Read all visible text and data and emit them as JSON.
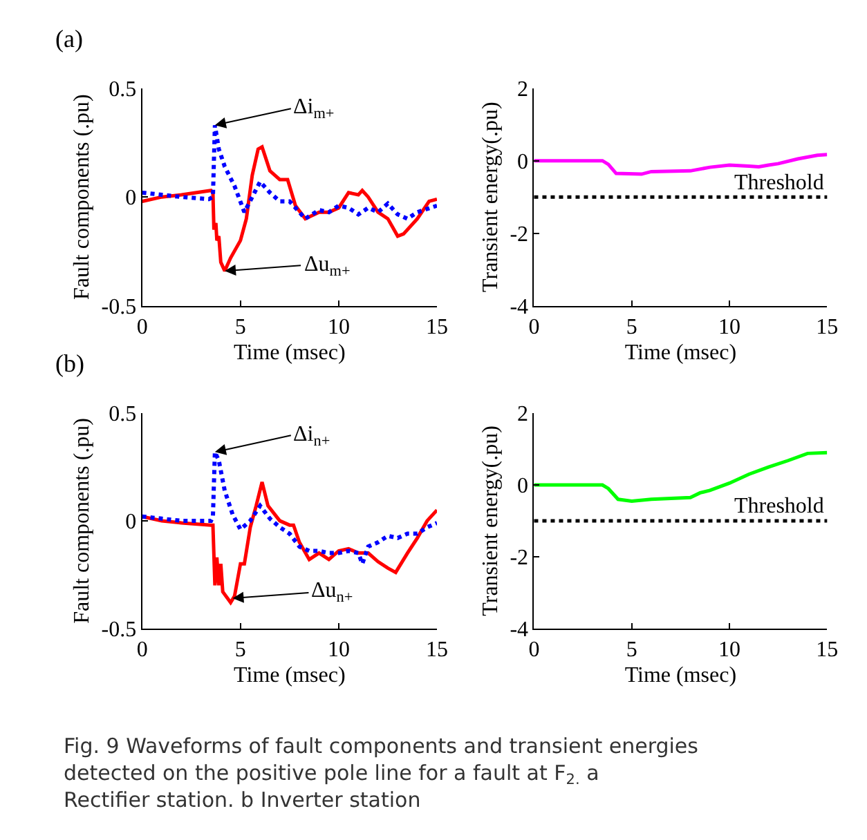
{
  "chart_data": [
    {
      "type": "line",
      "xlabel": "Time (msec)",
      "ylabel": "Fault components (.pu)",
      "xlim": [
        0,
        15
      ],
      "xticks": [
        0,
        5,
        10,
        15
      ],
      "ylim": [
        -0.5,
        0.5
      ],
      "yticks": [
        -0.5,
        0,
        0.5
      ],
      "annotations": [
        "(a)",
        {
          "text": "Δi$_{m+}$",
          "x": 3.7,
          "y": 0.33
        },
        {
          "text": "Δu$_{m+}$",
          "x": 4.2,
          "y": -0.34
        }
      ],
      "series": [
        {
          "color": "#ff0000",
          "line_style": "solid",
          "x": [
            0,
            1,
            2,
            3.5,
            3.6,
            3.65,
            3.75,
            3.8,
            3.9,
            4.0,
            4.2,
            4.5,
            5,
            5.3,
            5.6,
            5.9,
            6.1,
            6.5,
            7,
            7.4,
            7.8,
            8.3,
            9,
            9.5,
            10,
            10.5,
            11,
            11.2,
            11.5,
            12,
            12.5,
            13,
            13.3,
            14,
            14.6,
            15
          ],
          "values": [
            -0.02,
            0,
            0.01,
            0.03,
            0.02,
            -0.15,
            -0.12,
            -0.2,
            -0.18,
            -0.3,
            -0.34,
            -0.28,
            -0.2,
            -0.1,
            0.1,
            0.22,
            0.23,
            0.12,
            0.08,
            0.08,
            -0.04,
            -0.1,
            -0.07,
            -0.07,
            -0.05,
            0.02,
            0.01,
            0.03,
            0,
            -0.07,
            -0.1,
            -0.18,
            -0.17,
            -0.1,
            -0.02,
            -0.01
          ]
        },
        {
          "color": "#0000ff",
          "line_style": "dotted",
          "x": [
            0,
            1,
            2,
            3.4,
            3.6,
            3.7,
            3.9,
            4.2,
            4.7,
            5.2,
            5.6,
            6,
            6.5,
            7,
            7.5,
            8,
            8.3,
            9,
            9.5,
            10,
            10.5,
            11,
            11.5,
            12,
            12.5,
            13,
            13.5,
            14,
            15
          ],
          "values": [
            0.02,
            0.01,
            0,
            -0.01,
            0,
            0.33,
            0.22,
            0.14,
            0.05,
            -0.07,
            0,
            0.07,
            0.02,
            -0.02,
            -0.02,
            -0.07,
            -0.1,
            -0.06,
            -0.07,
            -0.04,
            -0.05,
            -0.08,
            -0.05,
            -0.07,
            -0.03,
            -0.08,
            -0.1,
            -0.07,
            -0.04
          ]
        }
      ]
    },
    {
      "type": "line",
      "xlabel": "Time (msec)",
      "ylabel": "Transient energy(.pu)",
      "xlim": [
        0,
        15
      ],
      "xticks": [
        0,
        5,
        10,
        15
      ],
      "ylim": [
        -4,
        2
      ],
      "yticks": [
        -4,
        -2,
        0,
        2
      ],
      "ref_lines": [
        {
          "axis": "y",
          "value": -1,
          "label": "Threshold",
          "color": "#000000",
          "line_style": "dotted"
        }
      ],
      "series": [
        {
          "color": "#ff00ff",
          "line_style": "solid",
          "x": [
            0,
            3.5,
            3.8,
            4.2,
            5.5,
            6,
            8,
            9,
            10,
            11,
            11.5,
            12,
            12.5,
            13.5,
            14.5,
            15
          ],
          "values": [
            0,
            0,
            -0.1,
            -0.35,
            -0.37,
            -0.3,
            -0.28,
            -0.18,
            -0.12,
            -0.15,
            -0.17,
            -0.12,
            -0.08,
            0.05,
            0.15,
            0.17
          ]
        }
      ]
    },
    {
      "type": "line",
      "xlabel": "Time (msec)",
      "ylabel": "Fault components (.pu)",
      "xlim": [
        0,
        15
      ],
      "xticks": [
        0,
        5,
        10,
        15
      ],
      "ylim": [
        -0.5,
        0.5
      ],
      "yticks": [
        -0.5,
        0,
        0.5
      ],
      "annotations": [
        "(b)",
        {
          "text": "Δi$_{n+}$",
          "x": 3.7,
          "y": 0.32
        },
        {
          "text": "Δu$_{n+}$",
          "x": 4.6,
          "y": -0.36
        }
      ],
      "series": [
        {
          "color": "#ff0000",
          "line_style": "solid",
          "x": [
            0,
            1,
            2,
            3.5,
            3.6,
            3.7,
            3.8,
            3.9,
            4.0,
            4.1,
            4.5,
            4.7,
            5,
            5.2,
            5.5,
            5.8,
            6.1,
            6.4,
            7,
            7.5,
            7.7,
            8,
            8.5,
            9,
            9.5,
            10,
            10.5,
            11,
            11.5,
            12,
            12.5,
            12.9,
            13.5,
            14,
            14.5,
            15
          ],
          "values": [
            0.02,
            0,
            -0.01,
            -0.02,
            -0.02,
            -0.3,
            -0.17,
            -0.3,
            -0.2,
            -0.33,
            -0.38,
            -0.35,
            -0.2,
            -0.2,
            -0.03,
            0.07,
            0.18,
            0.07,
            0,
            -0.02,
            -0.02,
            -0.1,
            -0.18,
            -0.15,
            -0.18,
            -0.14,
            -0.13,
            -0.15,
            -0.15,
            -0.19,
            -0.22,
            -0.24,
            -0.15,
            -0.08,
            0,
            0.05
          ]
        },
        {
          "color": "#0000ff",
          "line_style": "dotted",
          "x": [
            0,
            1,
            2,
            3.5,
            3.6,
            3.7,
            3.9,
            4.2,
            4.6,
            5,
            5.5,
            6,
            6.5,
            7,
            7.5,
            8,
            8.5,
            9,
            9.5,
            10,
            10.5,
            11,
            11.2,
            11.5,
            12,
            12.5,
            13,
            13.5,
            14,
            14.5,
            15
          ],
          "values": [
            0.02,
            0.01,
            0,
            0,
            0.02,
            0.32,
            0.28,
            0.14,
            0.03,
            -0.04,
            0,
            0.07,
            0.01,
            -0.03,
            -0.06,
            -0.12,
            -0.14,
            -0.14,
            -0.15,
            -0.15,
            -0.14,
            -0.15,
            -0.2,
            -0.12,
            -0.1,
            -0.07,
            -0.08,
            -0.06,
            -0.06,
            -0.03,
            -0.01
          ]
        }
      ]
    },
    {
      "type": "line",
      "xlabel": "Time (msec)",
      "ylabel": "Transient energy(.pu)",
      "xlim": [
        0,
        15
      ],
      "xticks": [
        0,
        5,
        10,
        15
      ],
      "ylim": [
        -4,
        2
      ],
      "yticks": [
        -4,
        -2,
        0,
        2
      ],
      "annotations": [
        "Fig. 9 Waveforms of fault components and transient energies detected on the positive pole line for a fault at F$_{2.}$ a Rectifier station. b Inverter station"
      ],
      "ref_lines": [
        {
          "axis": "y",
          "value": -1,
          "label": "Threshold",
          "color": "#000000",
          "line_style": "dotted"
        }
      ],
      "series": [
        {
          "color": "#00ff00",
          "line_style": "solid",
          "x": [
            0,
            3.5,
            3.8,
            4.3,
            5,
            6,
            8,
            8.5,
            9,
            10,
            11,
            12,
            13,
            14,
            15
          ],
          "values": [
            0,
            0,
            -0.1,
            -0.4,
            -0.45,
            -0.4,
            -0.35,
            -0.22,
            -0.15,
            0.05,
            0.3,
            0.5,
            0.68,
            0.88,
            0.9
          ]
        }
      ]
    }
  ]
}
